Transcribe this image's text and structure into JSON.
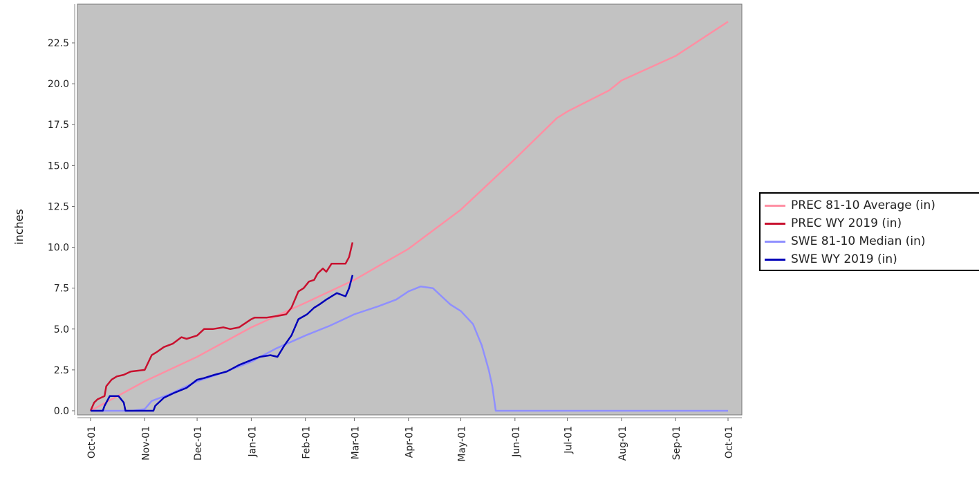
{
  "chart_data": {
    "type": "line",
    "title": "",
    "xlabel": "",
    "ylabel": "inches",
    "xlim": [
      "2018-10-01",
      "2019-10-01"
    ],
    "ylim": [
      0,
      24.5
    ],
    "grid": false,
    "legend_position": "right",
    "background_color": "#c2c2c2",
    "x_ticks": [
      "2018-10-01",
      "2018-11-01",
      "2018-12-01",
      "2019-01-01",
      "2019-02-01",
      "2019-03-01",
      "2019-04-01",
      "2019-05-01",
      "2019-06-01",
      "2019-07-01",
      "2019-08-01",
      "2019-09-01",
      "2019-10-01"
    ],
    "x_tick_labels": [
      "Oct-01",
      "Nov-01",
      "Dec-01",
      "Jan-01",
      "Feb-01",
      "Mar-01",
      "Apr-01",
      "May-01",
      "Jun-01",
      "Jul-01",
      "Aug-01",
      "Sep-01",
      "Oct-01"
    ],
    "y_ticks": [
      0,
      2.5,
      5,
      7.5,
      10,
      12.5,
      15,
      17.5,
      20,
      22.5
    ],
    "y_tick_labels": [
      "0.0",
      "2.5",
      "5.0",
      "7.5",
      "10.0",
      "12.5",
      "15.0",
      "17.5",
      "20.0",
      "22.5"
    ],
    "series": [
      {
        "name": "PREC 81-10 Average (in)",
        "color": "#ff8fa3",
        "width": 2.5,
        "x": [
          "2018-10-01",
          "2018-11-01",
          "2018-12-01",
          "2019-01-01",
          "2019-02-01",
          "2019-03-01",
          "2019-04-01",
          "2019-05-01",
          "2019-06-01",
          "2019-06-25",
          "2019-07-01",
          "2019-07-25",
          "2019-08-01",
          "2019-09-01",
          "2019-10-01"
        ],
        "y": [
          0,
          1.8,
          3.3,
          5.1,
          6.6,
          8.0,
          9.9,
          12.3,
          15.4,
          17.9,
          18.3,
          19.6,
          20.2,
          21.7,
          23.8
        ]
      },
      {
        "name": "PREC WY 2019  (in)",
        "color": "#c8102e",
        "width": 2.5,
        "x": [
          "2018-10-01",
          "2018-10-03",
          "2018-10-05",
          "2018-10-09",
          "2018-10-10",
          "2018-10-13",
          "2018-10-16",
          "2018-10-20",
          "2018-10-24",
          "2018-11-01",
          "2018-11-05",
          "2018-11-08",
          "2018-11-12",
          "2018-11-17",
          "2018-11-22",
          "2018-11-25",
          "2018-12-01",
          "2018-12-05",
          "2018-12-10",
          "2018-12-16",
          "2018-12-20",
          "2018-12-25",
          "2019-01-01",
          "2019-01-03",
          "2019-01-06",
          "2019-01-10",
          "2019-01-16",
          "2019-01-21",
          "2019-01-24",
          "2019-01-28",
          "2019-01-31",
          "2019-02-03",
          "2019-02-06",
          "2019-02-08",
          "2019-02-11",
          "2019-02-13",
          "2019-02-16",
          "2019-02-21",
          "2019-02-24",
          "2019-02-26",
          "2019-02-28"
        ],
        "y": [
          0,
          0.5,
          0.7,
          0.9,
          1.5,
          1.9,
          2.1,
          2.2,
          2.4,
          2.5,
          3.4,
          3.6,
          3.9,
          4.1,
          4.5,
          4.4,
          4.6,
          5.0,
          5.0,
          5.1,
          5.0,
          5.1,
          5.6,
          5.7,
          5.7,
          5.7,
          5.8,
          5.9,
          6.3,
          7.3,
          7.5,
          7.9,
          8.0,
          8.4,
          8.7,
          8.5,
          9.0,
          9.0,
          9.0,
          9.4,
          10.3
        ]
      },
      {
        "name": "SWE 81-10 Median (in)",
        "color": "#8f8fff",
        "width": 2.5,
        "x": [
          "2018-10-01",
          "2018-10-25",
          "2018-11-01",
          "2018-11-05",
          "2018-11-15",
          "2018-12-01",
          "2018-12-15",
          "2019-01-01",
          "2019-01-15",
          "2019-02-01",
          "2019-02-15",
          "2019-03-01",
          "2019-03-15",
          "2019-03-25",
          "2019-04-01",
          "2019-04-08",
          "2019-04-15",
          "2019-04-20",
          "2019-04-25",
          "2019-05-01",
          "2019-05-08",
          "2019-05-13",
          "2019-05-17",
          "2019-05-19",
          "2019-05-21",
          "2019-10-01"
        ],
        "y": [
          0,
          0,
          0.1,
          0.6,
          1.0,
          1.8,
          2.3,
          3.0,
          3.8,
          4.6,
          5.2,
          5.9,
          6.4,
          6.8,
          7.3,
          7.6,
          7.5,
          7.0,
          6.5,
          6.1,
          5.3,
          4.0,
          2.5,
          1.5,
          0,
          0
        ]
      },
      {
        "name": "SWE WY 2019  (in)",
        "color": "#0000b8",
        "width": 2.5,
        "x": [
          "2018-10-01",
          "2018-10-08",
          "2018-10-09",
          "2018-10-12",
          "2018-10-17",
          "2018-10-20",
          "2018-10-21",
          "2018-11-06",
          "2018-11-07",
          "2018-11-12",
          "2018-11-18",
          "2018-11-25",
          "2018-12-01",
          "2018-12-05",
          "2018-12-11",
          "2018-12-18",
          "2018-12-25",
          "2019-01-01",
          "2019-01-06",
          "2019-01-12",
          "2019-01-16",
          "2019-01-20",
          "2019-01-24",
          "2019-01-28",
          "2019-02-02",
          "2019-02-06",
          "2019-02-09",
          "2019-02-13",
          "2019-02-19",
          "2019-02-24",
          "2019-02-26",
          "2019-02-28"
        ],
        "y": [
          0,
          0,
          0.3,
          0.9,
          0.9,
          0.5,
          0,
          0,
          0.3,
          0.8,
          1.1,
          1.4,
          1.9,
          2.0,
          2.2,
          2.4,
          2.8,
          3.1,
          3.3,
          3.4,
          3.3,
          4.0,
          4.6,
          5.6,
          5.9,
          6.3,
          6.5,
          6.8,
          7.2,
          7.0,
          7.5,
          8.3
        ]
      }
    ]
  }
}
